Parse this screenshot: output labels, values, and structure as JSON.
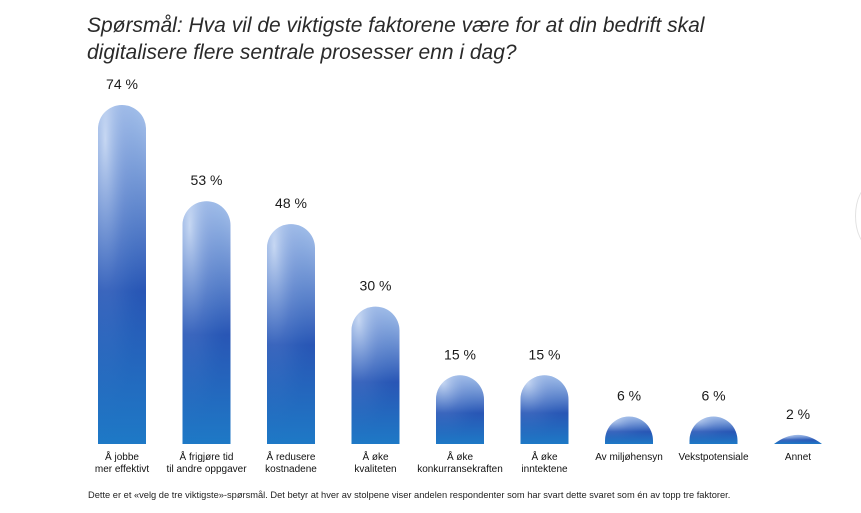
{
  "title": "Spørsmål: Hva vil de viktigste faktorene være for at din bedrift skal digitalisere flere sentrale prosesser enn i dag?",
  "footnote": "Dette er et «velg de tre viktigste»-spørsmål. Det betyr at hver av stolpene viser andelen respondenter som har svart dette svaret som én av topp tre faktorer.",
  "colors": {
    "bar_light": "#a9c3ea",
    "bar_mid": "#2a5db8",
    "bar_base": "#1f77c4"
  },
  "chart_data": {
    "type": "bar",
    "title": "Spørsmål: Hva vil de viktigste faktorene være for at din bedrift skal digitalisere flere sentrale prosesser enn i dag?",
    "categories": [
      [
        "Å jobbe",
        "mer effektivt"
      ],
      [
        "Å frigjøre tid",
        "til andre oppgaver"
      ],
      [
        "Å redusere",
        "kostnadene"
      ],
      [
        "Å øke",
        "kvaliteten"
      ],
      [
        "Å øke",
        "konkurransekraften"
      ],
      [
        "Å øke",
        "inntektene"
      ],
      [
        "Av miljøhensyn"
      ],
      [
        "Vekstpotensiale"
      ],
      [
        "Annet"
      ]
    ],
    "values": [
      74,
      53,
      48,
      30,
      15,
      15,
      6,
      6,
      2
    ],
    "value_labels": [
      "74 %",
      "53 %",
      "48 %",
      "30 %",
      "15 %",
      "15 %",
      "6 %",
      "6 %",
      "2 %"
    ],
    "unit": "%",
    "xlabel": "",
    "ylabel": "",
    "ylim": [
      0,
      80
    ],
    "grid": false,
    "legend": "none"
  }
}
